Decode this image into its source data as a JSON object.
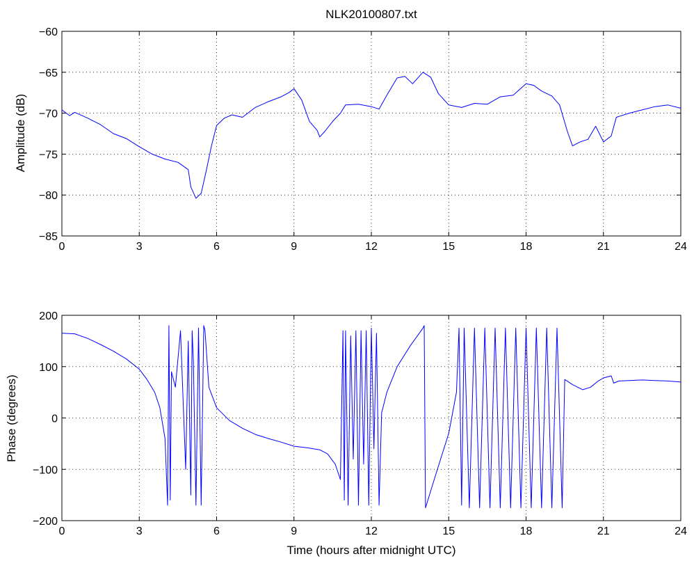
{
  "figure_title": "NLK20100807.txt",
  "chart_data": [
    {
      "type": "line",
      "title": "NLK20100807.txt",
      "xlabel": "",
      "ylabel": "Amplitude (dB)",
      "xlim": [
        0,
        24
      ],
      "ylim": [
        -85,
        -60
      ],
      "xticks": [
        0,
        3,
        6,
        9,
        12,
        15,
        18,
        21,
        24
      ],
      "yticks": [
        -85,
        -80,
        -75,
        -70,
        -65,
        -60
      ],
      "xtick_labels": [
        "0",
        "3",
        "6",
        "9",
        "12",
        "15",
        "18",
        "21",
        "24"
      ],
      "ytick_labels": [
        "−85",
        "−80",
        "−75",
        "−70",
        "−65",
        "−60"
      ],
      "grid": true,
      "color": "#0000ff",
      "series": [
        {
          "x": [
            0,
            0.3,
            0.5,
            1.0,
            1.5,
            2.0,
            2.5,
            3.0,
            3.5,
            4.0,
            4.5,
            4.9,
            5.0,
            5.2,
            5.4,
            5.6,
            5.8,
            6.0,
            6.3,
            6.6,
            7.0,
            7.5,
            8.0,
            8.5,
            8.8,
            9.0,
            9.3,
            9.6,
            9.9,
            10.0,
            10.2,
            10.5,
            10.8,
            11.0,
            11.5,
            12.0,
            12.3,
            12.6,
            13.0,
            13.3,
            13.6,
            14.0,
            14.3,
            14.6,
            15.0,
            15.5,
            16.0,
            16.5,
            17.0,
            17.5,
            18.0,
            18.3,
            18.6,
            19.0,
            19.3,
            19.6,
            19.8,
            20.1,
            20.4,
            20.7,
            21.0,
            21.3,
            21.5,
            22.0,
            22.5,
            23.0,
            23.5,
            24.0
          ],
          "y": [
            -69.6,
            -70.3,
            -69.9,
            -70.6,
            -71.4,
            -72.5,
            -73.1,
            -74.1,
            -75.0,
            -75.6,
            -76.0,
            -76.9,
            -79.0,
            -80.4,
            -79.8,
            -77.0,
            -74.0,
            -71.5,
            -70.6,
            -70.2,
            -70.5,
            -69.3,
            -68.6,
            -68.0,
            -67.5,
            -67.0,
            -68.4,
            -71.0,
            -72.1,
            -72.9,
            -72.2,
            -71.0,
            -70.0,
            -69.0,
            -68.9,
            -69.2,
            -69.5,
            -67.8,
            -65.7,
            -65.5,
            -66.4,
            -65.0,
            -65.6,
            -67.6,
            -69.0,
            -69.3,
            -68.8,
            -68.9,
            -68.0,
            -67.8,
            -66.4,
            -66.6,
            -67.3,
            -67.9,
            -69.0,
            -72.2,
            -74.0,
            -73.5,
            -73.2,
            -71.6,
            -73.5,
            -72.8,
            -70.5,
            -70.0,
            -69.6,
            -69.2,
            -69.0,
            -69.4
          ]
        }
      ]
    },
    {
      "type": "line",
      "title": "",
      "xlabel": "Time (hours after midnight UTC)",
      "ylabel": "Phase (degrees)",
      "xlim": [
        0,
        24
      ],
      "ylim": [
        -200,
        200
      ],
      "xticks": [
        0,
        3,
        6,
        9,
        12,
        15,
        18,
        21,
        24
      ],
      "yticks": [
        -200,
        -100,
        0,
        100,
        200
      ],
      "xtick_labels": [
        "0",
        "3",
        "6",
        "9",
        "12",
        "15",
        "18",
        "21",
        "24"
      ],
      "ytick_labels": [
        "−200",
        "−100",
        "0",
        "100",
        "200"
      ],
      "grid": true,
      "color": "#0000ff",
      "series": [
        {
          "x": [
            0,
            0.5,
            1.0,
            1.5,
            2.0,
            2.5,
            3.0,
            3.3,
            3.6,
            3.8,
            4.0,
            4.1,
            4.15,
            4.2,
            4.25,
            4.4,
            4.6,
            4.8,
            4.9,
            5.0,
            5.05,
            5.1,
            5.2,
            5.3,
            5.4,
            5.5,
            5.55,
            5.7,
            6.0,
            6.5,
            7.0,
            7.5,
            8.0,
            8.5,
            9.0,
            9.5,
            10.0,
            10.3,
            10.6,
            10.8,
            10.9,
            10.95,
            11.0,
            11.1,
            11.2,
            11.3,
            11.4,
            11.5,
            11.6,
            11.7,
            11.8,
            11.9,
            12.0,
            12.1,
            12.2,
            12.3,
            12.4,
            12.6,
            13.0,
            13.5,
            14.0,
            14.05,
            14.1,
            14.5,
            15.0,
            15.3,
            15.4,
            15.5,
            15.6,
            15.8,
            16.0,
            16.2,
            16.4,
            16.6,
            16.8,
            17.0,
            17.2,
            17.4,
            17.6,
            17.8,
            18.0,
            18.2,
            18.4,
            18.6,
            18.8,
            19.0,
            19.2,
            19.4,
            19.5,
            19.8,
            20.2,
            20.5,
            20.8,
            21.0,
            21.3,
            21.4,
            21.6,
            22.0,
            22.5,
            23.0,
            23.5,
            24.0
          ],
          "y": [
            165,
            164,
            155,
            143,
            130,
            115,
            95,
            75,
            50,
            20,
            -40,
            -170,
            180,
            -160,
            90,
            60,
            170,
            -100,
            150,
            -150,
            170,
            110,
            -170,
            175,
            -170,
            180,
            170,
            60,
            20,
            -5,
            -20,
            -32,
            -40,
            -47,
            -55,
            -58,
            -62,
            -70,
            -90,
            -120,
            170,
            -160,
            170,
            -170,
            160,
            -80,
            170,
            -170,
            170,
            -90,
            170,
            -170,
            175,
            -60,
            165,
            -170,
            10,
            50,
            100,
            140,
            175,
            180,
            -175,
            -110,
            -30,
            50,
            175,
            -170,
            175,
            -175,
            175,
            -175,
            175,
            -175,
            175,
            -175,
            175,
            -175,
            175,
            -175,
            175,
            -175,
            175,
            -175,
            175,
            -175,
            175,
            -175,
            75,
            65,
            55,
            60,
            72,
            78,
            82,
            68,
            72,
            73,
            74,
            73,
            72,
            70
          ]
        }
      ]
    }
  ]
}
